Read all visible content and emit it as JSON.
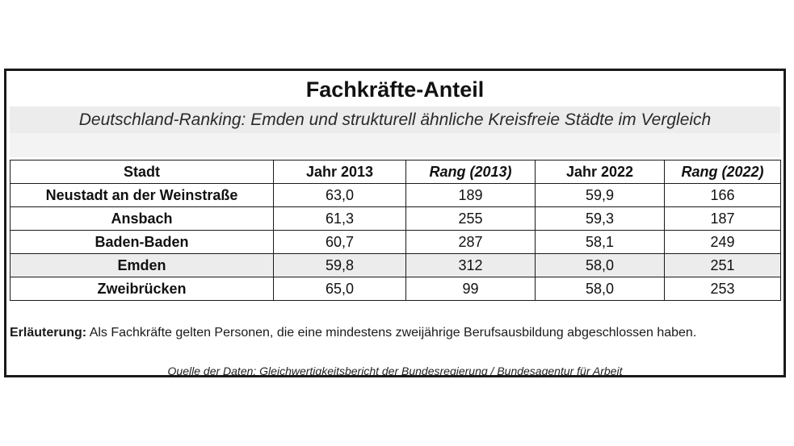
{
  "title": "Fachkräfte-Anteil",
  "subtitle": "Deutschland-Ranking: Emden und strukturell ähnliche Kreisfreie Städte im Vergleich",
  "table": {
    "headers": [
      "Stadt",
      "Jahr 2013",
      "Rang (2013)",
      "Jahr 2022",
      "Rang (2022)"
    ],
    "rows": [
      {
        "stadt": "Neustadt an der Weinstraße",
        "jahr2013": "63,0",
        "rang2013": "189",
        "jahr2022": "59,9",
        "rang2022": "166"
      },
      {
        "stadt": "Ansbach",
        "jahr2013": "61,3",
        "rang2013": "255",
        "jahr2022": "59,3",
        "rang2022": "187"
      },
      {
        "stadt": "Baden-Baden",
        "jahr2013": "60,7",
        "rang2013": "287",
        "jahr2022": "58,1",
        "rang2022": "249"
      },
      {
        "stadt": "Emden",
        "jahr2013": "59,8",
        "rang2013": "312",
        "jahr2022": "58,0",
        "rang2022": "251"
      },
      {
        "stadt": "Zweibrücken",
        "jahr2013": "65,0",
        "rang2013": "99",
        "jahr2022": "58,0",
        "rang2022": "253"
      }
    ],
    "highlight_color": "#ececec"
  },
  "note": {
    "label": "Erläuterung:",
    "text": " Als Fachkräfte gelten Personen, die eine mindestens zweijährige Berufsausbildung abgeschlossen haben."
  },
  "source": "Quelle der Daten: Gleichwertigkeitsbericht der Bundesregierung / Bundesagentur für Arbeit"
}
